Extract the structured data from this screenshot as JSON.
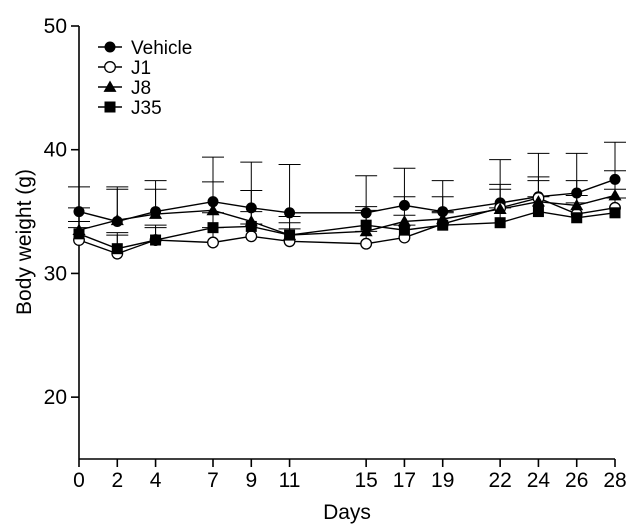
{
  "chart_data": {
    "type": "line",
    "title": "",
    "xlabel": "Days",
    "ylabel": "Body weight (g)",
    "x": [
      0,
      2,
      4,
      7,
      9,
      11,
      15,
      17,
      19,
      22,
      24,
      26,
      28
    ],
    "x_ticks": [
      0,
      2,
      4,
      7,
      9,
      11,
      15,
      17,
      19,
      22,
      24,
      26,
      28
    ],
    "y_ticks": [
      20,
      30,
      40,
      50
    ],
    "xlim": [
      0,
      28
    ],
    "ylim": [
      15,
      50
    ],
    "grid": false,
    "legend_position": "top-left",
    "series": [
      {
        "name": "Vehicle",
        "marker": "filled-circle",
        "values": [
          35.0,
          34.2,
          35.0,
          35.8,
          35.3,
          34.9,
          34.9,
          35.5,
          35.0,
          35.7,
          36.2,
          36.5,
          37.6
        ],
        "errors": [
          2.0,
          2.6,
          2.5,
          3.6,
          3.7,
          3.9,
          3.0,
          3.0,
          2.5,
          3.5,
          3.5,
          3.2,
          3.0
        ]
      },
      {
        "name": "J1",
        "marker": "open-circle",
        "values": [
          32.7,
          31.6,
          32.7,
          32.5,
          33.0,
          32.6,
          32.4,
          32.9,
          34.0,
          35.3,
          36.1,
          34.8,
          35.3
        ],
        "errors": [
          1.0,
          1.5,
          1.2,
          1.2,
          1.0,
          1.0,
          1.0,
          1.0,
          1.0,
          1.5,
          1.4,
          1.5,
          1.5
        ]
      },
      {
        "name": "J8",
        "marker": "filled-triangle",
        "values": [
          33.5,
          34.3,
          34.8,
          35.1,
          34.2,
          33.1,
          33.4,
          34.2,
          34.4,
          35.2,
          35.8,
          35.5,
          36.3
        ],
        "errors": [
          1.8,
          2.7,
          2.0,
          2.3,
          2.5,
          1.5,
          2.0,
          2.0,
          1.8,
          2.0,
          2.0,
          2.0,
          2.0
        ]
      },
      {
        "name": "J35",
        "marker": "filled-square",
        "values": [
          33.2,
          32.0,
          32.7,
          33.7,
          33.8,
          33.1,
          33.9,
          33.5,
          33.9,
          34.1,
          35.0,
          34.5,
          34.9
        ],
        "errors": [
          1.0,
          1.3,
          1.0,
          1.2,
          1.2,
          1.0,
          1.2,
          1.2,
          1.0,
          1.2,
          1.2,
          1.2,
          1.2
        ]
      }
    ]
  }
}
